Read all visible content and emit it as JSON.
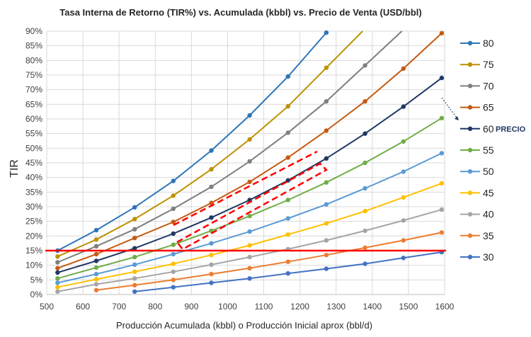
{
  "chart_data": {
    "type": "line",
    "title": "Tasa Interna de Retorno (TIR%) vs. Acumulada (kbbl) vs. Precio de Venta (USD/bbl)",
    "xlabel": "Producción Acumulada (kbbl) o Producción Inicial aprox (bbl/d)",
    "ylabel": "TIR",
    "xlim": [
      500,
      1600
    ],
    "ylim": [
      0,
      90
    ],
    "x_ticks": [
      "500",
      "600",
      "700",
      "800",
      "900",
      "1000",
      "1100",
      "1200",
      "1300",
      "1400",
      "1500",
      "1600"
    ],
    "y_ticks": [
      "0%",
      "5%",
      "10%",
      "15%",
      "20%",
      "25%",
      "30%",
      "35%",
      "40%",
      "45%",
      "50%",
      "55%",
      "60%",
      "65%",
      "70%",
      "75%",
      "80%",
      "85%",
      "90%"
    ],
    "grid": true,
    "legend_position": "right",
    "x": [
      530,
      637,
      743,
      850,
      955,
      1061,
      1167,
      1273,
      1380,
      1486,
      1592
    ],
    "series": [
      {
        "name": "80",
        "color": "#2E75B6",
        "values": [
          15,
          22,
          29.8,
          38.8,
          49.2,
          61.2,
          74.5,
          89.5,
          null,
          null,
          null
        ]
      },
      {
        "name": "75",
        "color": "#BF9000",
        "values": [
          13,
          18.8,
          25.8,
          33.8,
          42.8,
          53,
          64.3,
          77.5,
          null,
          null,
          null
        ]
      },
      {
        "name": "70",
        "color": "#7F7F7F",
        "values": [
          11,
          16.5,
          22.3,
          29.3,
          36.8,
          45.5,
          55.3,
          66,
          78.3,
          null,
          null
        ]
      },
      {
        "name": "65",
        "color": "#C55A11",
        "values": [
          9,
          13.8,
          19.3,
          24.8,
          31.3,
          38.5,
          46.8,
          56,
          66,
          77.2,
          89.3
        ]
      },
      {
        "name": "60",
        "color": "#203864",
        "values": [
          7.5,
          11.5,
          15.8,
          20.8,
          26.3,
          32.3,
          39,
          46.5,
          55,
          64.2,
          74
        ]
      },
      {
        "name": "55",
        "color": "#70AD47",
        "values": [
          5.5,
          9.2,
          12.8,
          17,
          21.8,
          26.8,
          32.3,
          38.3,
          45,
          52.3,
          60.3
        ]
      },
      {
        "name": "50",
        "color": "#5B9BD5",
        "values": [
          4,
          7,
          10.2,
          13.8,
          17.5,
          21.5,
          26,
          30.8,
          36.3,
          42,
          48.3
        ]
      },
      {
        "name": "45",
        "color": "#FFC000",
        "values": [
          2.5,
          5.2,
          7.8,
          10.5,
          13.5,
          16.8,
          20.5,
          24.3,
          28.5,
          33.2,
          38
        ]
      },
      {
        "name": "40",
        "color": "#A5A5A5",
        "values": [
          1,
          3.5,
          5.5,
          7.8,
          10.2,
          12.8,
          15.5,
          18.5,
          21.8,
          25.3,
          29
        ]
      },
      {
        "name": "35",
        "color": "#ED7D31",
        "values": [
          null,
          1.5,
          3.2,
          5,
          7,
          9,
          11.2,
          13.5,
          16,
          18.5,
          21.2
        ]
      },
      {
        "name": "30",
        "color": "#4472C4",
        "values": [
          null,
          null,
          1,
          2.5,
          4,
          5.5,
          7.2,
          8.8,
          10.5,
          12.5,
          14.5
        ]
      }
    ],
    "reference_line": {
      "y": 15,
      "color": "#FF0000"
    },
    "annotation": "PRECIO"
  }
}
